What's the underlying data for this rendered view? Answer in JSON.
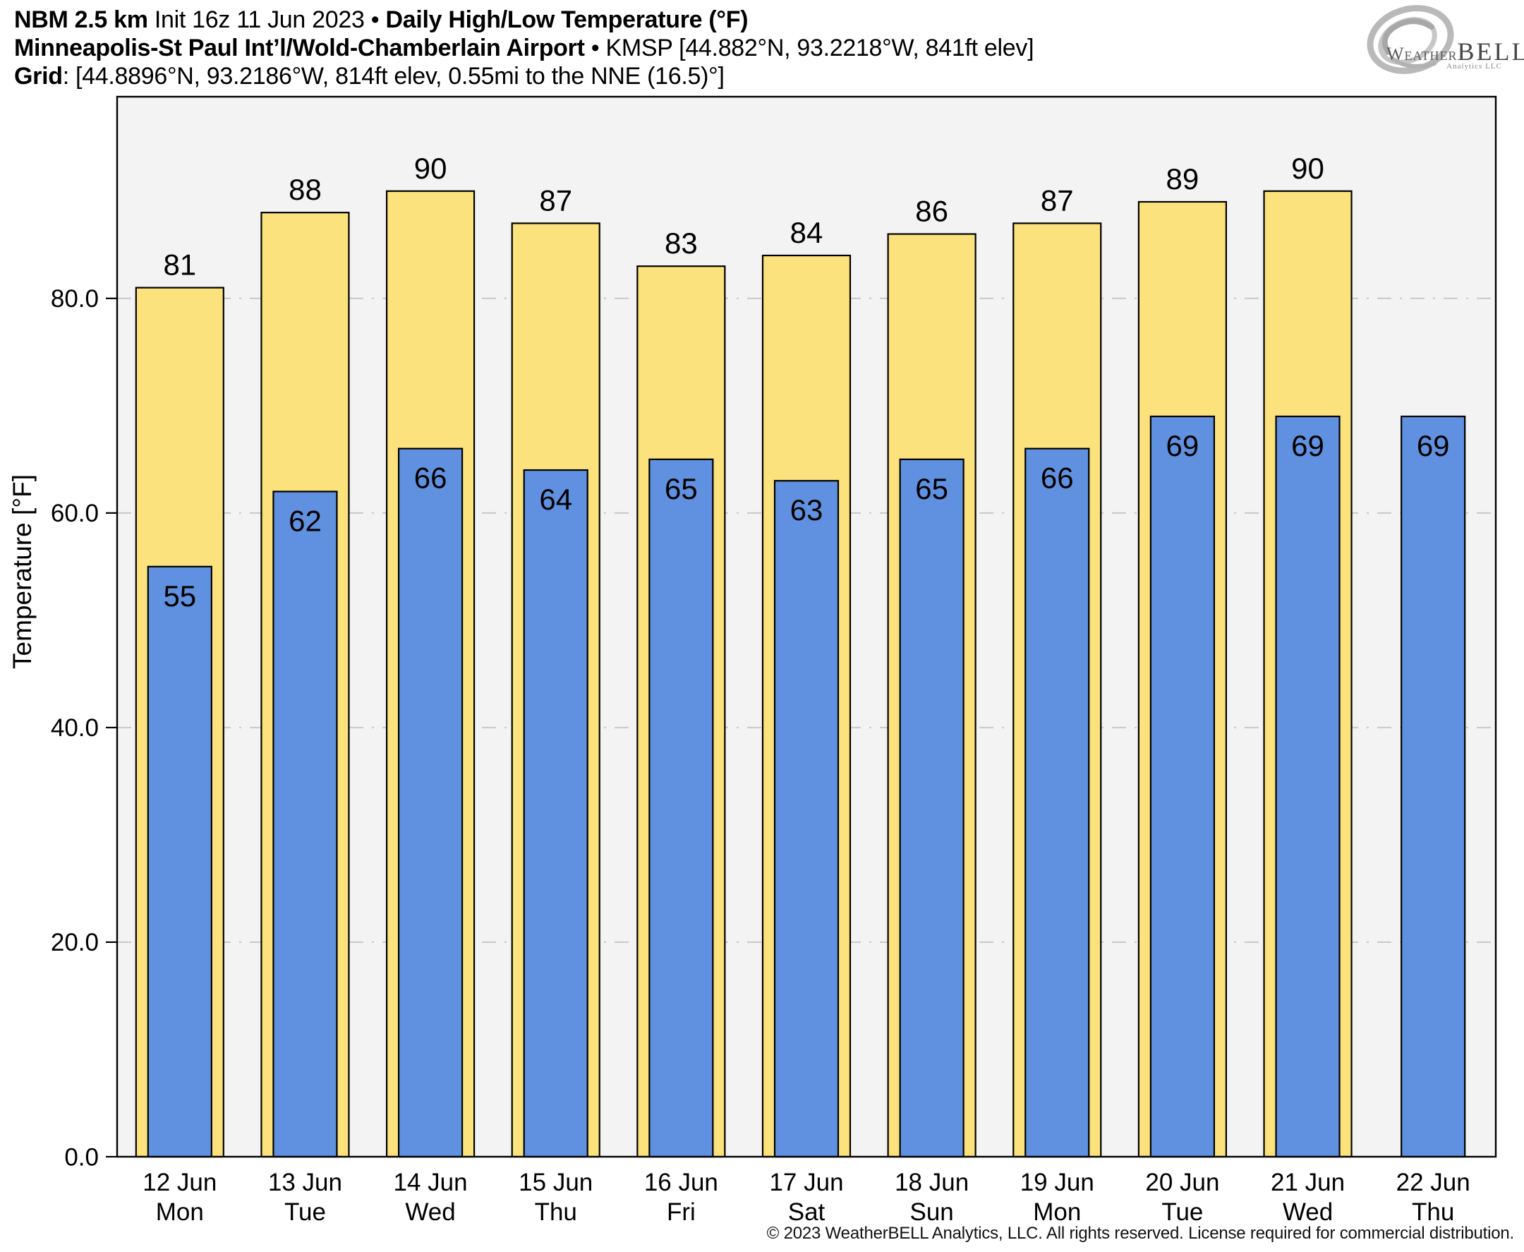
{
  "header": {
    "line1": [
      {
        "text": "NBM 2.5 km",
        "bold": true
      },
      {
        "text": " Init 16z 11 Jun 2023 • ",
        "bold": false
      },
      {
        "text": "Daily High/Low Temperature (°F)",
        "bold": true
      }
    ],
    "line2": [
      {
        "text": "Minneapolis-St Paul Int’l/Wold-Chamberlain Airport",
        "bold": true
      },
      {
        "text": " • KMSP [44.882°N, 93.2218°W, 841ft elev]",
        "bold": false
      }
    ],
    "line3": [
      {
        "text": "Grid",
        "bold": true
      },
      {
        "text": ": [44.8896°N, 93.2186°W, 814ft elev, 0.55mi to the NNE (16.5)°]",
        "bold": false
      }
    ]
  },
  "logo": {
    "brand_prefix": "Weather",
    "brand_suffix": "BELL",
    "sub": "Analytics LLC"
  },
  "footer": {
    "copyright": "© 2023 WeatherBELL Analytics, LLC. All rights reserved. License required for commercial distribution."
  },
  "chart_data": {
    "type": "bar",
    "title": "Daily High/Low Temperature (°F)",
    "ylabel": "Temperature [°F]",
    "categories": [
      {
        "date": "12 Jun",
        "day": "Mon"
      },
      {
        "date": "13 Jun",
        "day": "Tue"
      },
      {
        "date": "14 Jun",
        "day": "Wed"
      },
      {
        "date": "15 Jun",
        "day": "Thu"
      },
      {
        "date": "16 Jun",
        "day": "Fri"
      },
      {
        "date": "17 Jun",
        "day": "Sat"
      },
      {
        "date": "18 Jun",
        "day": "Sun"
      },
      {
        "date": "19 Jun",
        "day": "Mon"
      },
      {
        "date": "20 Jun",
        "day": "Tue"
      },
      {
        "date": "21 Jun",
        "day": "Wed"
      },
      {
        "date": "22 Jun",
        "day": "Thu"
      }
    ],
    "series": [
      {
        "name": "High",
        "color": "#FBE27C",
        "values": [
          81,
          88,
          90,
          87,
          83,
          84,
          86,
          87,
          89,
          90,
          null
        ]
      },
      {
        "name": "Low",
        "color": "#6090E0",
        "values": [
          55,
          62,
          66,
          64,
          65,
          63,
          65,
          66,
          69,
          69,
          69
        ]
      }
    ],
    "yticks": [
      {
        "value": 0,
        "label": "0.0"
      },
      {
        "value": 20,
        "label": "20.0"
      },
      {
        "value": 40,
        "label": "40.0"
      },
      {
        "value": 60,
        "label": "60.0"
      },
      {
        "value": 80,
        "label": "80.0"
      }
    ],
    "ylim": [
      0,
      98.8
    ],
    "grid": "horizontal-dash-dot",
    "legend": "none",
    "plot_bg": "#F3F3F3",
    "grid_color": "#C8C8C8",
    "bar_edge_color": "#000000"
  }
}
